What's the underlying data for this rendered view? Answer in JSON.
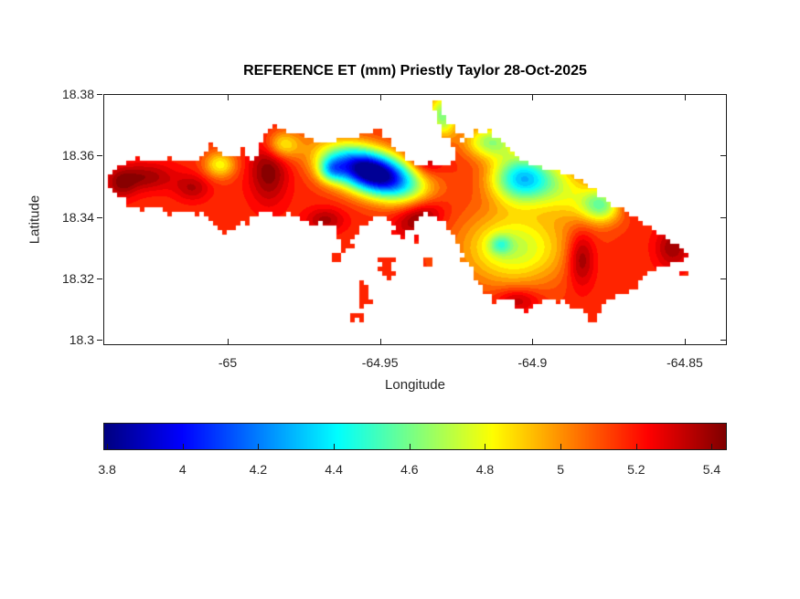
{
  "figure": {
    "background": "#ffffff",
    "axis_color": "#1a1a1a",
    "label_color": "#262626"
  },
  "chart_data": {
    "type": "heatmap",
    "subtype": "filled-contour-map",
    "title": "REFERENCE ET (mm) Priestly Taylor 28-Oct-2025",
    "xlabel": "Longitude",
    "ylabel": "Latitude",
    "xlim": [
      -65.0408,
      -64.8362
    ],
    "ylim": [
      18.2983,
      18.38
    ],
    "xticks": [
      -65,
      -64.95,
      -64.9,
      -64.85
    ],
    "xtick_labels": [
      "-65",
      "-64.95",
      "-64.9",
      "-64.85"
    ],
    "yticks": [
      18.38,
      18.36,
      18.34,
      18.32,
      18.3
    ],
    "ytick_labels": [
      "18.38",
      "18.36",
      "18.34",
      "18.32",
      "18.3"
    ],
    "grid": false,
    "colormap": "jet",
    "clim": [
      3.79,
      5.44
    ],
    "contour_step": 0.05,
    "colorbar": {
      "orientation": "horizontal",
      "position": "south",
      "ticks": [
        3.8,
        4,
        4.2,
        4.4,
        4.6,
        4.8,
        5,
        5.2,
        5.4
      ],
      "tick_labels": [
        "3.8",
        "4",
        "4.2",
        "4.4",
        "4.6",
        "4.8",
        "5",
        "5.2",
        "5.4"
      ]
    },
    "field": {
      "base": 5.17,
      "clamp": [
        3.8,
        5.43
      ],
      "grid_step_deg": 0.0015,
      "gaussians": [
        [
          -64.9525,
          18.3545,
          -1.55,
          0.0105,
          0.0048,
          -18
        ],
        [
          -64.966,
          18.3553,
          -0.42,
          0.003,
          0.0028,
          0
        ],
        [
          -64.9035,
          18.3525,
          -0.8,
          0.007,
          0.0055,
          0
        ],
        [
          -64.877,
          18.344,
          -0.55,
          0.005,
          0.004,
          0
        ],
        [
          -64.9135,
          18.3645,
          -0.5,
          0.006,
          0.0038,
          0
        ],
        [
          -64.9295,
          18.373,
          -0.55,
          0.0035,
          0.005,
          0
        ],
        [
          -64.906,
          18.33,
          -0.45,
          0.012,
          0.0085,
          0
        ],
        [
          -64.9105,
          18.331,
          -0.28,
          0.0026,
          0.0022,
          0
        ],
        [
          -65.0025,
          18.357,
          -0.35,
          0.0036,
          0.003,
          0
        ],
        [
          -65.027,
          18.353,
          0.22,
          0.007,
          0.0032,
          0
        ],
        [
          -64.9865,
          18.355,
          0.27,
          0.0045,
          0.0075,
          0
        ],
        [
          -64.937,
          18.34,
          0.27,
          0.006,
          0.0038,
          25
        ],
        [
          -64.884,
          18.3265,
          0.27,
          0.0032,
          0.0065,
          0
        ],
        [
          -64.905,
          18.313,
          0.2,
          0.005,
          0.0028,
          0
        ],
        [
          -64.854,
          18.33,
          0.22,
          0.004,
          0.0048,
          0
        ],
        [
          -64.869,
          18.345,
          0.16,
          0.0045,
          0.0035,
          0
        ],
        [
          -65.035,
          18.3505,
          0.18,
          0.0035,
          0.0035,
          0
        ],
        [
          -64.935,
          18.3595,
          0.25,
          0.0038,
          0.0042,
          0
        ],
        [
          -64.982,
          18.3635,
          -0.35,
          0.004,
          0.0032,
          0
        ],
        [
          -64.968,
          18.339,
          0.2,
          0.0045,
          0.0028,
          0
        ],
        [
          -65.0115,
          18.3495,
          0.18,
          0.004,
          0.003,
          0
        ],
        [
          -64.89,
          18.349,
          -0.3,
          0.008,
          0.006,
          -30
        ]
      ]
    },
    "island": {
      "main_polygon": [
        [
          -65.0393,
          18.3524
        ],
        [
          -65.0363,
          18.3556
        ],
        [
          -65.0297,
          18.3595
        ],
        [
          -65.0243,
          18.3577
        ],
        [
          -65.0192,
          18.3595
        ],
        [
          -65.0132,
          18.3577
        ],
        [
          -65.0072,
          18.3601
        ],
        [
          -65.0051,
          18.364
        ],
        [
          -65.0027,
          18.3607
        ],
        [
          -64.9973,
          18.3595
        ],
        [
          -64.9949,
          18.3616
        ],
        [
          -64.9931,
          18.3586
        ],
        [
          -64.9913,
          18.3571
        ],
        [
          -64.9883,
          18.366
        ],
        [
          -64.9847,
          18.3696
        ],
        [
          -64.9757,
          18.3666
        ],
        [
          -64.9682,
          18.3637
        ],
        [
          -64.9631,
          18.3654
        ],
        [
          -64.9562,
          18.366
        ],
        [
          -64.9523,
          18.3681
        ],
        [
          -64.9502,
          18.3681
        ],
        [
          -64.9472,
          18.3646
        ],
        [
          -64.9433,
          18.3607
        ],
        [
          -64.9403,
          18.3583
        ],
        [
          -64.9373,
          18.3568
        ],
        [
          -64.9337,
          18.3574
        ],
        [
          -64.9301,
          18.3562
        ],
        [
          -64.9265,
          18.3571
        ],
        [
          -64.9247,
          18.3595
        ],
        [
          -64.9256,
          18.3631
        ],
        [
          -64.9289,
          18.3672
        ],
        [
          -64.9313,
          18.372
        ],
        [
          -64.9325,
          18.3764
        ],
        [
          -64.931,
          18.3773
        ],
        [
          -64.9289,
          18.3732
        ],
        [
          -64.9265,
          18.369
        ],
        [
          -64.9238,
          18.366
        ],
        [
          -64.9223,
          18.3637
        ],
        [
          -64.9211,
          18.3654
        ],
        [
          -64.9187,
          18.3675
        ],
        [
          -64.9148,
          18.3678
        ],
        [
          -64.9112,
          18.3654
        ],
        [
          -64.9085,
          18.3625
        ],
        [
          -64.9067,
          18.3607
        ],
        [
          -64.9019,
          18.358
        ],
        [
          -64.8971,
          18.3559
        ],
        [
          -64.8917,
          18.3548
        ],
        [
          -64.8872,
          18.353
        ],
        [
          -64.8833,
          18.3509
        ],
        [
          -64.8797,
          18.3482
        ],
        [
          -64.8752,
          18.3447
        ],
        [
          -64.8707,
          18.3429
        ],
        [
          -64.8656,
          18.3393
        ],
        [
          -64.8611,
          18.3363
        ],
        [
          -64.8563,
          18.3334
        ],
        [
          -64.8521,
          18.3304
        ],
        [
          -64.8491,
          18.3283
        ],
        [
          -64.8512,
          18.3262
        ],
        [
          -64.8557,
          18.3245
        ],
        [
          -64.8608,
          18.3224
        ],
        [
          -64.8647,
          18.3206
        ],
        [
          -64.8665,
          18.317
        ],
        [
          -64.8692,
          18.3156
        ],
        [
          -64.8743,
          18.3135
        ],
        [
          -64.8782,
          18.3102
        ],
        [
          -64.8797,
          18.3061
        ],
        [
          -64.8815,
          18.3066
        ],
        [
          -64.8827,
          18.3102
        ],
        [
          -64.8863,
          18.3111
        ],
        [
          -64.8917,
          18.3132
        ],
        [
          -64.8971,
          18.3126
        ],
        [
          -64.9016,
          18.3102
        ],
        [
          -64.9052,
          18.3114
        ],
        [
          -64.9076,
          18.3141
        ],
        [
          -64.9127,
          18.3126
        ],
        [
          -64.9157,
          18.3161
        ],
        [
          -64.9181,
          18.3197
        ],
        [
          -64.9196,
          18.3239
        ],
        [
          -64.9223,
          18.3259
        ],
        [
          -64.9235,
          18.3298
        ],
        [
          -64.9253,
          18.3334
        ],
        [
          -64.9277,
          18.3369
        ],
        [
          -64.9301,
          18.3393
        ],
        [
          -64.9337,
          18.3417
        ],
        [
          -64.9382,
          18.3399
        ],
        [
          -64.9403,
          18.3363
        ],
        [
          -64.9427,
          18.334
        ],
        [
          -64.9451,
          18.3357
        ],
        [
          -64.9463,
          18.3393
        ],
        [
          -64.9502,
          18.3405
        ],
        [
          -64.9547,
          18.3387
        ],
        [
          -64.9583,
          18.3357
        ],
        [
          -64.9595,
          18.331
        ],
        [
          -64.9619,
          18.3298
        ],
        [
          -64.9631,
          18.3334
        ],
        [
          -64.9643,
          18.3369
        ],
        [
          -64.9682,
          18.3387
        ],
        [
          -64.9727,
          18.3375
        ],
        [
          -64.9757,
          18.3393
        ],
        [
          -64.9793,
          18.3417
        ],
        [
          -64.9832,
          18.3405
        ],
        [
          -64.9877,
          18.3423
        ],
        [
          -64.9913,
          18.3408
        ],
        [
          -64.9943,
          18.3387
        ],
        [
          -64.9982,
          18.3369
        ],
        [
          -65.0012,
          18.3357
        ],
        [
          -65.0042,
          18.3375
        ],
        [
          -65.0063,
          18.3405
        ],
        [
          -65.0102,
          18.3417
        ],
        [
          -65.0147,
          18.3429
        ],
        [
          -65.0192,
          18.3417
        ],
        [
          -65.0237,
          18.3435
        ],
        [
          -65.0282,
          18.3429
        ],
        [
          -65.0327,
          18.3447
        ],
        [
          -65.0357,
          18.3467
        ],
        [
          -65.0381,
          18.3497
        ]
      ],
      "islets": [
        [
          [
            -64.9496,
            18.3262
          ],
          [
            -64.9457,
            18.3265
          ],
          [
            -64.946,
            18.3221
          ],
          [
            -64.9475,
            18.3203
          ],
          [
            -64.9499,
            18.3224
          ]
        ],
        [
          [
            -64.9562,
            18.3182
          ],
          [
            -64.9541,
            18.3176
          ],
          [
            -64.9547,
            18.315
          ],
          [
            -64.9538,
            18.3126
          ],
          [
            -64.9556,
            18.3105
          ],
          [
            -64.9568,
            18.3126
          ],
          [
            -64.9556,
            18.315
          ],
          [
            -64.9568,
            18.317
          ]
        ],
        [
          [
            -64.9586,
            18.3081
          ],
          [
            -64.9559,
            18.3081
          ],
          [
            -64.9559,
            18.3069
          ],
          [
            -64.9586,
            18.3069
          ]
        ],
        [
          [
            -64.9646,
            18.3274
          ],
          [
            -64.9631,
            18.3274
          ],
          [
            -64.9631,
            18.3262
          ],
          [
            -64.9646,
            18.3262
          ]
        ],
        [
          [
            -64.9358,
            18.3268
          ],
          [
            -64.9331,
            18.3268
          ],
          [
            -64.9331,
            18.3239
          ],
          [
            -64.9358,
            18.3239
          ]
        ],
        [
          [
            -64.9388,
            18.334
          ],
          [
            -64.9376,
            18.334
          ],
          [
            -64.9376,
            18.3328
          ],
          [
            -64.9388,
            18.3328
          ]
        ],
        [
          [
            -64.8506,
            18.3221
          ],
          [
            -64.8494,
            18.3221
          ],
          [
            -64.8494,
            18.3209
          ],
          [
            -64.8506,
            18.3209
          ]
        ]
      ]
    }
  }
}
